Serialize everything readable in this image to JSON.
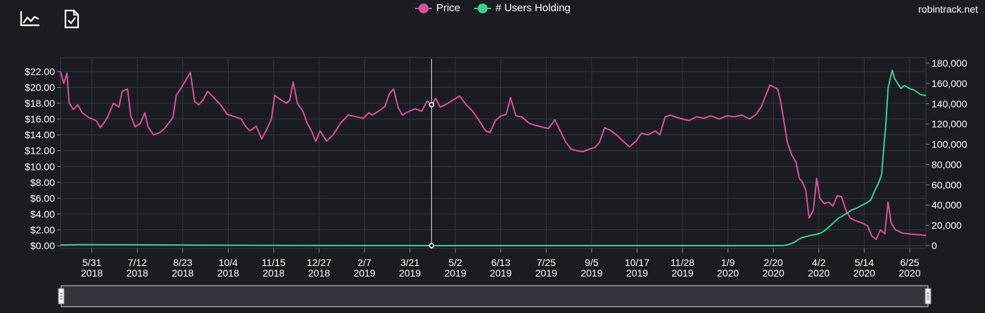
{
  "toolbar": {
    "icons": [
      "line-chart-icon",
      "document-check-icon"
    ]
  },
  "legend": [
    {
      "label": "Price",
      "color": "#d9509a"
    },
    {
      "label": "# Users Holding",
      "color": "#3fce90"
    }
  ],
  "watermark": "robintrack.net",
  "chart_data": {
    "type": "line",
    "x_tick_labels": [
      [
        "5/31",
        "2018"
      ],
      [
        "7/12",
        "2018"
      ],
      [
        "8/23",
        "2018"
      ],
      [
        "10/4",
        "2018"
      ],
      [
        "11/15",
        "2018"
      ],
      [
        "12/27",
        "2018"
      ],
      [
        "2/7",
        "2019"
      ],
      [
        "3/21",
        "2019"
      ],
      [
        "5/2",
        "2019"
      ],
      [
        "6/13",
        "2019"
      ],
      [
        "7/25",
        "2019"
      ],
      [
        "9/5",
        "2019"
      ],
      [
        "10/17",
        "2019"
      ],
      [
        "11/28",
        "2019"
      ],
      [
        "1/9",
        "2020"
      ],
      [
        "2/20",
        "2020"
      ],
      [
        "4/2",
        "2020"
      ],
      [
        "5/14",
        "2020"
      ],
      [
        "6/25",
        "2020"
      ]
    ],
    "x_tick_dates": [
      "2018-05-31",
      "2018-07-12",
      "2018-08-23",
      "2018-10-04",
      "2018-11-15",
      "2018-12-27",
      "2019-02-07",
      "2019-03-21",
      "2019-05-02",
      "2019-06-13",
      "2019-07-25",
      "2019-09-05",
      "2019-10-17",
      "2019-11-28",
      "2020-01-09",
      "2020-02-20",
      "2020-04-02",
      "2020-05-14",
      "2020-06-25"
    ],
    "x_range": [
      "2018-05-02",
      "2020-07-10"
    ],
    "y_left_tick_labels": [
      "$0.00",
      "$2.00",
      "$4.00",
      "$6.00",
      "$8.00",
      "$10.00",
      "$12.00",
      "$14.00",
      "$16.00",
      "$18.00",
      "$20.00",
      "$22.00"
    ],
    "y_left_range": [
      0,
      22
    ],
    "y_right_tick_labels": [
      "0",
      "20,000",
      "40,000",
      "60,000",
      "80,000",
      "100,000",
      "120,000",
      "140,000",
      "160,000",
      "180,000"
    ],
    "y_right_range": [
      0,
      180000
    ],
    "grid": true,
    "legend_position": "top-center",
    "crosshair_date": "2019-04-10",
    "crosshair_price": 17.8,
    "crosshair_users": 0,
    "series": [
      {
        "name": "Price",
        "axis": "left",
        "color": "#d9509a",
        "points": [
          [
            "2018-05-02",
            22.0
          ],
          [
            "2018-05-05",
            20.5
          ],
          [
            "2018-05-08",
            21.8
          ],
          [
            "2018-05-10",
            18.0
          ],
          [
            "2018-05-14",
            17.2
          ],
          [
            "2018-05-18",
            17.8
          ],
          [
            "2018-05-22",
            16.8
          ],
          [
            "2018-05-28",
            16.2
          ],
          [
            "2018-06-04",
            15.8
          ],
          [
            "2018-06-08",
            14.9
          ],
          [
            "2018-06-14",
            16.1
          ],
          [
            "2018-06-20",
            18.0
          ],
          [
            "2018-06-25",
            17.5
          ],
          [
            "2018-06-28",
            19.5
          ],
          [
            "2018-07-03",
            19.8
          ],
          [
            "2018-07-06",
            16.4
          ],
          [
            "2018-07-10",
            15.0
          ],
          [
            "2018-07-15",
            15.5
          ],
          [
            "2018-07-19",
            16.8
          ],
          [
            "2018-07-22",
            15.0
          ],
          [
            "2018-07-27",
            14.0
          ],
          [
            "2018-08-02",
            14.3
          ],
          [
            "2018-08-06",
            14.8
          ],
          [
            "2018-08-10",
            15.5
          ],
          [
            "2018-08-14",
            16.2
          ],
          [
            "2018-08-17",
            19.0
          ],
          [
            "2018-08-22",
            20.0
          ],
          [
            "2018-08-27",
            21.2
          ],
          [
            "2018-08-30",
            21.9
          ],
          [
            "2018-09-03",
            18.2
          ],
          [
            "2018-09-07",
            17.8
          ],
          [
            "2018-09-11",
            18.5
          ],
          [
            "2018-09-15",
            19.5
          ],
          [
            "2018-09-20",
            18.8
          ],
          [
            "2018-09-27",
            17.8
          ],
          [
            "2018-10-03",
            16.6
          ],
          [
            "2018-10-10",
            16.3
          ],
          [
            "2018-10-16",
            16.0
          ],
          [
            "2018-10-20",
            15.1
          ],
          [
            "2018-10-24",
            14.5
          ],
          [
            "2018-10-30",
            15.1
          ],
          [
            "2018-11-04",
            13.5
          ],
          [
            "2018-11-09",
            14.8
          ],
          [
            "2018-11-13",
            16.0
          ],
          [
            "2018-11-16",
            19.0
          ],
          [
            "2018-11-21",
            18.5
          ],
          [
            "2018-11-27",
            18.0
          ],
          [
            "2018-11-30",
            18.4
          ],
          [
            "2018-12-03",
            20.7
          ],
          [
            "2018-12-07",
            18.0
          ],
          [
            "2018-12-12",
            17.0
          ],
          [
            "2018-12-16",
            15.5
          ],
          [
            "2018-12-20",
            14.5
          ],
          [
            "2018-12-24",
            13.2
          ],
          [
            "2018-12-28",
            14.5
          ],
          [
            "2019-01-03",
            13.2
          ],
          [
            "2019-01-09",
            14.0
          ],
          [
            "2019-01-16",
            15.5
          ],
          [
            "2019-01-23",
            16.5
          ],
          [
            "2019-01-30",
            16.3
          ],
          [
            "2019-02-06",
            16.1
          ],
          [
            "2019-02-11",
            16.8
          ],
          [
            "2019-02-14",
            16.5
          ],
          [
            "2019-02-20",
            17.0
          ],
          [
            "2019-02-26",
            17.6
          ],
          [
            "2019-03-02",
            19.2
          ],
          [
            "2019-03-06",
            19.8
          ],
          [
            "2019-03-10",
            17.5
          ],
          [
            "2019-03-14",
            16.5
          ],
          [
            "2019-03-19",
            16.9
          ],
          [
            "2019-03-26",
            17.3
          ],
          [
            "2019-04-01",
            17.0
          ],
          [
            "2019-04-06",
            18.3
          ],
          [
            "2019-04-10",
            17.8
          ],
          [
            "2019-04-14",
            18.6
          ],
          [
            "2019-04-18",
            17.5
          ],
          [
            "2019-04-24",
            17.9
          ],
          [
            "2019-05-01",
            18.5
          ],
          [
            "2019-05-06",
            18.9
          ],
          [
            "2019-05-12",
            17.8
          ],
          [
            "2019-05-18",
            17.0
          ],
          [
            "2019-05-24",
            15.8
          ],
          [
            "2019-05-30",
            14.5
          ],
          [
            "2019-06-03",
            14.3
          ],
          [
            "2019-06-08",
            15.8
          ],
          [
            "2019-06-13",
            16.4
          ],
          [
            "2019-06-18",
            16.6
          ],
          [
            "2019-06-22",
            18.7
          ],
          [
            "2019-06-27",
            16.4
          ],
          [
            "2019-07-02",
            16.3
          ],
          [
            "2019-07-09",
            15.5
          ],
          [
            "2019-07-15",
            15.2
          ],
          [
            "2019-07-21",
            15.0
          ],
          [
            "2019-07-27",
            14.8
          ],
          [
            "2019-08-02",
            15.9
          ],
          [
            "2019-08-07",
            14.5
          ],
          [
            "2019-08-12",
            13.1
          ],
          [
            "2019-08-17",
            12.2
          ],
          [
            "2019-08-22",
            12.0
          ],
          [
            "2019-08-28",
            11.9
          ],
          [
            "2019-09-03",
            12.2
          ],
          [
            "2019-09-08",
            12.4
          ],
          [
            "2019-09-12",
            13.0
          ],
          [
            "2019-09-17",
            14.9
          ],
          [
            "2019-09-22",
            14.6
          ],
          [
            "2019-09-28",
            14.0
          ],
          [
            "2019-10-04",
            13.2
          ],
          [
            "2019-10-10",
            12.5
          ],
          [
            "2019-10-16",
            13.2
          ],
          [
            "2019-10-21",
            14.2
          ],
          [
            "2019-10-27",
            14.0
          ],
          [
            "2019-11-03",
            14.5
          ],
          [
            "2019-11-07",
            14.0
          ],
          [
            "2019-11-12",
            16.3
          ],
          [
            "2019-11-17",
            16.5
          ],
          [
            "2019-11-23",
            16.2
          ],
          [
            "2019-11-28",
            16.0
          ],
          [
            "2019-12-04",
            15.8
          ],
          [
            "2019-12-11",
            16.3
          ],
          [
            "2019-12-18",
            16.1
          ],
          [
            "2019-12-24",
            16.4
          ],
          [
            "2020-01-01",
            16.0
          ],
          [
            "2020-01-08",
            16.4
          ],
          [
            "2020-01-15",
            16.3
          ],
          [
            "2020-01-22",
            16.5
          ],
          [
            "2020-01-29",
            16.0
          ],
          [
            "2020-02-04",
            16.6
          ],
          [
            "2020-02-09",
            17.6
          ],
          [
            "2020-02-13",
            19.0
          ],
          [
            "2020-02-17",
            20.3
          ],
          [
            "2020-02-21",
            20.0
          ],
          [
            "2020-02-24",
            19.8
          ],
          [
            "2020-02-27",
            18.0
          ],
          [
            "2020-03-01",
            15.5
          ],
          [
            "2020-03-04",
            13.0
          ],
          [
            "2020-03-08",
            11.5
          ],
          [
            "2020-03-12",
            10.5
          ],
          [
            "2020-03-15",
            8.5
          ],
          [
            "2020-03-18",
            8.0
          ],
          [
            "2020-03-21",
            7.0
          ],
          [
            "2020-03-24",
            3.5
          ],
          [
            "2020-03-28",
            4.5
          ],
          [
            "2020-03-31",
            8.5
          ],
          [
            "2020-04-03",
            6.0
          ],
          [
            "2020-04-07",
            5.3
          ],
          [
            "2020-04-11",
            5.5
          ],
          [
            "2020-04-15",
            5.0
          ],
          [
            "2020-04-19",
            6.3
          ],
          [
            "2020-04-23",
            6.2
          ],
          [
            "2020-04-27",
            4.5
          ],
          [
            "2020-05-01",
            3.5
          ],
          [
            "2020-05-05",
            3.2
          ],
          [
            "2020-05-09",
            3.0
          ],
          [
            "2020-05-13",
            2.8
          ],
          [
            "2020-05-17",
            2.5
          ],
          [
            "2020-05-21",
            1.2
          ],
          [
            "2020-05-25",
            0.8
          ],
          [
            "2020-05-29",
            2.0
          ],
          [
            "2020-06-02",
            1.5
          ],
          [
            "2020-06-05",
            5.5
          ],
          [
            "2020-06-08",
            2.8
          ],
          [
            "2020-06-12",
            2.0
          ],
          [
            "2020-06-18",
            1.6
          ],
          [
            "2020-06-24",
            1.5
          ],
          [
            "2020-06-30",
            1.4
          ],
          [
            "2020-07-06",
            1.35
          ],
          [
            "2020-07-10",
            1.3
          ]
        ]
      },
      {
        "name": "# Users Holding",
        "axis": "right",
        "color": "#3fce90",
        "points": [
          [
            "2018-05-02",
            500
          ],
          [
            "2018-05-20",
            1000
          ],
          [
            "2018-07-01",
            900
          ],
          [
            "2018-09-01",
            500
          ],
          [
            "2018-12-01",
            200
          ],
          [
            "2019-03-01",
            100
          ],
          [
            "2019-06-01",
            0
          ],
          [
            "2019-09-01",
            0
          ],
          [
            "2019-12-01",
            0
          ],
          [
            "2020-02-20",
            0
          ],
          [
            "2020-03-01",
            200
          ],
          [
            "2020-03-05",
            1000
          ],
          [
            "2020-03-10",
            3000
          ],
          [
            "2020-03-14",
            6000
          ],
          [
            "2020-03-18",
            8000
          ],
          [
            "2020-03-25",
            10000
          ],
          [
            "2020-04-01",
            11500
          ],
          [
            "2020-04-05",
            13000
          ],
          [
            "2020-04-10",
            17000
          ],
          [
            "2020-04-15",
            22000
          ],
          [
            "2020-04-20",
            27000
          ],
          [
            "2020-04-25",
            30000
          ],
          [
            "2020-04-28",
            32000
          ],
          [
            "2020-05-02",
            35000
          ],
          [
            "2020-05-07",
            37000
          ],
          [
            "2020-05-12",
            40000
          ],
          [
            "2020-05-16",
            42000
          ],
          [
            "2020-05-20",
            45000
          ],
          [
            "2020-05-24",
            55000
          ],
          [
            "2020-05-27",
            61000
          ],
          [
            "2020-05-30",
            70000
          ],
          [
            "2020-06-01",
            95000
          ],
          [
            "2020-06-03",
            120000
          ],
          [
            "2020-06-05",
            155000
          ],
          [
            "2020-06-07",
            165000
          ],
          [
            "2020-06-09",
            173000
          ],
          [
            "2020-06-11",
            165000
          ],
          [
            "2020-06-14",
            160000
          ],
          [
            "2020-06-17",
            155000
          ],
          [
            "2020-06-20",
            158000
          ],
          [
            "2020-06-25",
            155000
          ],
          [
            "2020-06-30",
            153000
          ],
          [
            "2020-07-05",
            149000
          ],
          [
            "2020-07-10",
            148000
          ]
        ]
      }
    ]
  }
}
